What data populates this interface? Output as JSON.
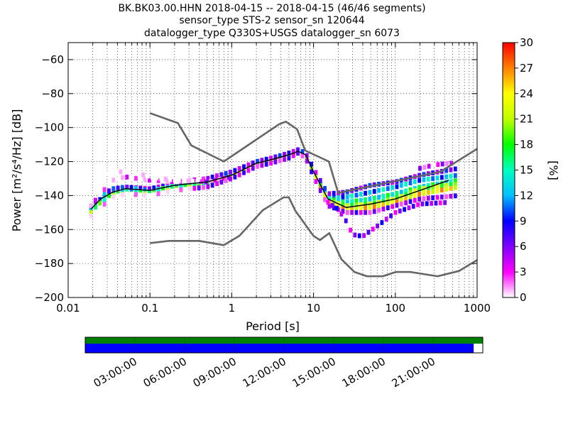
{
  "title_lines": [
    "BK.BK03.00.HHN   2018-04-15 -- 2018-04-15  (46/46 segments)",
    "sensor_type STS-2 sensor_sn 120644",
    "datalogger_type Q330S+USGS datalogger_sn 6073"
  ],
  "chart_data": {
    "type": "heatmap",
    "title": "BK.BK03.00.HHN   2018-04-15 -- 2018-04-15  (46/46 segments)",
    "xlabel": "Period [s]",
    "ylabel": "Power [m²/s⁴/Hz] [dB]",
    "x_scale": "log",
    "xlim": [
      0.01,
      1000
    ],
    "ylim": [
      -200,
      -50
    ],
    "x_ticks": [
      0.01,
      0.1,
      1,
      10,
      100,
      1000
    ],
    "x_tick_labels": [
      "0.01",
      "0.1",
      "1",
      "10",
      "100",
      "1000"
    ],
    "y_ticks": [
      -200,
      -180,
      -160,
      -140,
      -120,
      -100,
      -80,
      -60
    ],
    "y_tick_labels": [
      "−200",
      "−180",
      "−160",
      "−140",
      "−120",
      "−100",
      "−80",
      "−60"
    ],
    "grid": true,
    "colorbar": {
      "label": "[%]",
      "range": [
        0,
        30
      ],
      "ticks": [
        0,
        3,
        6,
        9,
        12,
        15,
        18,
        21,
        24,
        27,
        30
      ],
      "colormap": "pqlx",
      "colors": [
        "#ffffff",
        "#ff00ff",
        "#7f00ff",
        "#0000ff",
        "#00bfff",
        "#00ffbf",
        "#00ff00",
        "#bfff00",
        "#ffff00",
        "#ff8000",
        "#ff0000"
      ]
    },
    "series": [
      {
        "role": "high-noise-model",
        "color": "#666666",
        "x": [
          0.1,
          0.22,
          0.32,
          0.8,
          3.8,
          4.6,
          6.3,
          7.9,
          15.4,
          20.0,
          354.8,
          1000
        ],
        "y": [
          -91.5,
          -97.4,
          -110.5,
          -120.0,
          -98.0,
          -96.5,
          -101.0,
          -113.5,
          -120.0,
          -138.5,
          -126.0,
          -112.5
        ]
      },
      {
        "role": "low-noise-model",
        "color": "#666666",
        "x": [
          0.1,
          0.17,
          0.4,
          0.8,
          1.24,
          2.4,
          4.3,
          5.0,
          6.0,
          10.0,
          12.0,
          15.6,
          21.9,
          31.6,
          45.0,
          70.0,
          101.0,
          154.0,
          328.0,
          600.0,
          1000.0
        ],
        "y": [
          -168.0,
          -166.7,
          -166.7,
          -169.2,
          -163.7,
          -148.6,
          -141.1,
          -141.1,
          -149.0,
          -163.8,
          -166.2,
          -162.1,
          -177.5,
          -185.0,
          -187.5,
          -187.5,
          -185.0,
          -185.0,
          -187.5,
          -184.4,
          -178.0
        ]
      },
      {
        "role": "mode",
        "color": "#000000",
        "x": [
          0.019,
          0.025,
          0.035,
          0.05,
          0.1,
          0.2,
          0.5,
          1,
          2,
          3,
          5,
          6.5,
          8,
          10,
          15,
          25,
          50,
          100,
          200,
          450
        ],
        "y": [
          -148,
          -142,
          -138,
          -136,
          -137,
          -134,
          -132,
          -128,
          -121,
          -119,
          -116,
          -114,
          -116,
          -126,
          -142,
          -147,
          -145,
          -142,
          -137,
          -131
        ]
      }
    ],
    "psd_bands": [
      {
        "x": [
          0.019,
          0.025,
          0.035,
          0.05,
          0.1,
          0.2,
          0.5,
          1,
          2,
          3,
          5,
          6.5,
          8,
          10,
          15,
          25,
          50,
          100,
          200,
          600
        ],
        "y": [
          -148,
          -142,
          -137,
          -135,
          -136,
          -133,
          -131,
          -127,
          -120,
          -119,
          -116,
          -114,
          -116,
          -126,
          -141,
          -141,
          -138,
          -135,
          -131,
          -128
        ],
        "pct": 12
      },
      {
        "x": [
          0.019,
          0.025,
          0.035,
          0.05,
          0.1,
          0.2,
          0.5,
          1,
          2,
          3,
          5,
          6.5,
          8,
          10,
          15,
          25,
          50,
          100,
          200,
          600
        ],
        "y": [
          -147,
          -140,
          -136,
          -135,
          -137,
          -135,
          -132,
          -128,
          -121,
          -119,
          -116,
          -114,
          -117,
          -127,
          -142,
          -144,
          -142,
          -139,
          -135,
          -131
        ],
        "pct": 15
      },
      {
        "x": [
          0.019,
          0.025,
          0.035,
          0.05,
          0.1,
          0.2,
          0.5,
          1,
          2,
          3,
          5,
          6.5,
          8,
          10,
          15,
          25,
          50,
          100,
          200,
          600
        ],
        "y": [
          -149,
          -143,
          -139,
          -137,
          -138,
          -134,
          -133,
          -128,
          -121,
          -119,
          -115,
          -114,
          -116,
          -126,
          -143,
          -146,
          -145,
          -142,
          -136,
          -133
        ],
        "pct": 20
      },
      {
        "x": [
          0.019,
          0.025,
          0.035,
          0.05,
          0.1,
          0.2,
          0.5,
          1,
          2,
          3,
          5,
          6.5,
          8,
          10,
          15,
          25,
          50,
          100,
          200,
          600
        ],
        "y": [
          -150,
          -144,
          -140,
          -139,
          -139,
          -136,
          -134,
          -129,
          -122,
          -120,
          -117,
          -115,
          -117,
          -128,
          -144,
          -148,
          -147,
          -144,
          -139,
          -135
        ],
        "pct": 24
      },
      {
        "x": [
          0.019,
          0.025,
          0.035,
          0.05,
          0.1,
          0.2,
          0.5,
          1,
          2,
          3,
          5,
          6.5,
          8,
          10,
          15,
          25,
          50,
          100,
          200,
          600
        ],
        "y": [
          -146,
          -139,
          -131,
          -129,
          -131,
          -132,
          -130,
          -126,
          -120,
          -118,
          -115,
          -113,
          -115,
          -124,
          -139,
          -138,
          -134,
          -132,
          -128,
          -124
        ],
        "pct": 7
      },
      {
        "x": [
          0.03,
          0.035,
          0.05,
          0.07,
          0.1,
          0.2,
          0.5,
          1
        ],
        "y": [
          -127,
          -126,
          -126,
          -127,
          -129,
          -131,
          -132,
          -129
        ],
        "pct": 4
      },
      {
        "x": [
          0.019,
          0.025,
          0.035,
          0.05,
          0.1,
          0.2,
          0.5,
          1,
          2,
          3,
          5,
          6.5,
          8,
          10,
          15,
          25,
          50,
          100,
          200,
          600
        ],
        "y": [
          -152,
          -147,
          -141,
          -139,
          -140,
          -137,
          -135,
          -130,
          -123,
          -121,
          -118,
          -115,
          -118,
          -129,
          -146,
          -150,
          -150,
          -146,
          -142,
          -140
        ],
        "pct": 5
      },
      {
        "x": [
          15,
          20,
          25,
          30,
          40,
          60,
          100,
          200,
          450
        ],
        "y": [
          -144,
          -148,
          -155,
          -163,
          -164,
          -158,
          -150,
          -145,
          -144
        ],
        "pct": 6
      },
      {
        "x": [
          200,
          300,
          450,
          600
        ],
        "y": [
          -124,
          -122,
          -121,
          -121
        ],
        "pct": 3
      }
    ]
  },
  "timeline": {
    "labels": [
      "03:00:00",
      "06:00:00",
      "09:00:00",
      "12:00:00",
      "15:00:00",
      "18:00:00",
      "21:00:00"
    ],
    "tick_hours": [
      3,
      6,
      9,
      12,
      15,
      18,
      21
    ],
    "span_hours": 24,
    "upper_bar": {
      "color": "#008000",
      "fraction": 1.0
    },
    "lower_bar": {
      "color": "#0000ff",
      "fraction": 0.977
    }
  }
}
